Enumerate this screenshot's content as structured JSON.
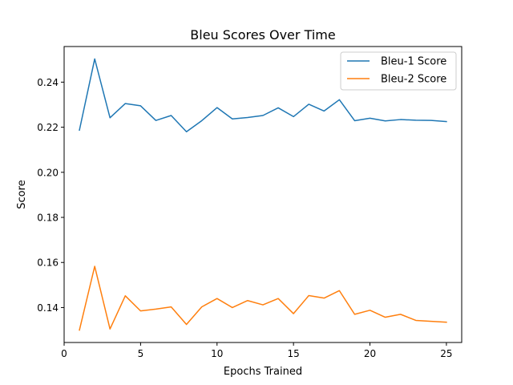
{
  "chart_data": {
    "type": "line",
    "title": "Bleu Scores Over Time",
    "xlabel": "Epochs Trained",
    "ylabel": "Score",
    "x": [
      1,
      2,
      3,
      4,
      5,
      6,
      7,
      8,
      9,
      10,
      11,
      12,
      13,
      14,
      15,
      16,
      17,
      18,
      19,
      20,
      21,
      22,
      23,
      24,
      25
    ],
    "series": [
      {
        "name": "Bleu-1 Score",
        "color": "#1f77b4",
        "values": [
          0.2187,
          0.2503,
          0.2242,
          0.2305,
          0.2295,
          0.223,
          0.2252,
          0.218,
          0.2229,
          0.2287,
          0.2237,
          0.2243,
          0.2252,
          0.2286,
          0.2247,
          0.2302,
          0.2272,
          0.2322,
          0.2229,
          0.224,
          0.2228,
          0.2234,
          0.2231,
          0.223,
          0.2225
        ]
      },
      {
        "name": "Bleu-2 Score",
        "color": "#ff7f0e",
        "values": [
          0.13,
          0.1583,
          0.1305,
          0.1452,
          0.1385,
          0.1393,
          0.1403,
          0.1325,
          0.1403,
          0.144,
          0.14,
          0.1431,
          0.1412,
          0.144,
          0.1373,
          0.1453,
          0.1442,
          0.1475,
          0.137,
          0.1388,
          0.1357,
          0.137,
          0.1343,
          0.1339,
          0.1335
        ]
      }
    ],
    "xlim": [
      0,
      26
    ],
    "ylim": [
      0.1245,
      0.2558
    ],
    "xticks": [
      0,
      5,
      10,
      15,
      20,
      25
    ],
    "xtick_labels": [
      "0",
      "5",
      "10",
      "15",
      "20",
      "25"
    ],
    "yticks": [
      0.14,
      0.16,
      0.18,
      0.2,
      0.22,
      0.24
    ],
    "ytick_labels": [
      "0.14",
      "0.16",
      "0.18",
      "0.20",
      "0.22",
      "0.24"
    ],
    "grid": false,
    "legend_position": "top-right"
  }
}
